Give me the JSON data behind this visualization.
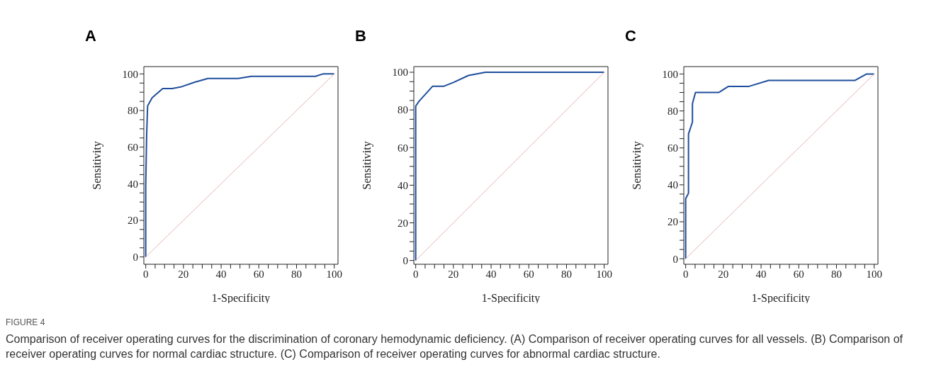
{
  "chart_data": [
    {
      "type": "line",
      "title": "A",
      "xlabel": "1-Specificity",
      "ylabel": "Sensitivity",
      "xlim": [
        -1,
        102
      ],
      "ylim": [
        -4,
        104
      ],
      "xticks": [
        0,
        {
          "value": 5,
          "label": null
        },
        {
          "value": 10,
          "label": null
        },
        {
          "value": 15,
          "label": null
        },
        20,
        {
          "value": 25,
          "label": null
        },
        {
          "value": 30,
          "label": null
        },
        {
          "value": 35,
          "label": null
        },
        40,
        {
          "value": 45,
          "label": null
        },
        {
          "value": 50,
          "label": null
        },
        {
          "value": 55,
          "label": null
        },
        60,
        {
          "value": 65,
          "label": null
        },
        {
          "value": 70,
          "label": null
        },
        {
          "value": 75,
          "label": null
        },
        80,
        {
          "value": 85,
          "label": null
        },
        {
          "value": 90,
          "label": null
        },
        {
          "value": 95,
          "label": null
        },
        100
      ],
      "yticks": [
        0,
        {
          "value": 5,
          "label": null
        },
        {
          "value": 10,
          "label": null
        },
        {
          "value": 15,
          "label": null
        },
        20,
        {
          "value": 25,
          "label": null
        },
        {
          "value": 30,
          "label": null
        },
        {
          "value": 35,
          "label": null
        },
        40,
        {
          "value": 45,
          "label": null
        },
        {
          "value": 50,
          "label": null
        },
        {
          "value": 55,
          "label": null
        },
        60,
        {
          "value": 65,
          "label": null
        },
        {
          "value": 70,
          "label": null
        },
        {
          "value": 75,
          "label": null
        },
        80,
        {
          "value": 85,
          "label": null
        },
        {
          "value": 90,
          "label": null
        },
        {
          "value": 95,
          "label": null
        },
        100
      ],
      "grid": false,
      "marker": "none",
      "series": [
        {
          "color": "#1f4e9c",
          "x": [
            0,
            0,
            0.5,
            1,
            3.4,
            9,
            14,
            19,
            26,
            33,
            49,
            56,
            90,
            94,
            100
          ],
          "values": [
            0,
            39,
            67,
            82.5,
            87,
            92,
            92,
            93,
            95.5,
            97.5,
            97.5,
            98.7,
            98.7,
            100,
            100
          ]
        },
        {
          "color": "#e3b5b5",
          "x": [
            0,
            100
          ],
          "values": [
            0,
            100
          ]
        }
      ]
    },
    {
      "type": "line",
      "title": "B",
      "xlabel": "1-Specificity",
      "ylabel": "Sensitivity",
      "xlim": [
        -1,
        102
      ],
      "ylim": [
        -2,
        103
      ],
      "xticks": [
        0,
        {
          "value": 5,
          "label": null
        },
        {
          "value": 10,
          "label": null
        },
        {
          "value": 15,
          "label": null
        },
        20,
        {
          "value": 25,
          "label": null
        },
        {
          "value": 30,
          "label": null
        },
        {
          "value": 35,
          "label": null
        },
        40,
        {
          "value": 45,
          "label": null
        },
        {
          "value": 50,
          "label": null
        },
        {
          "value": 55,
          "label": null
        },
        60,
        {
          "value": 65,
          "label": null
        },
        {
          "value": 70,
          "label": null
        },
        {
          "value": 75,
          "label": null
        },
        80,
        {
          "value": 85,
          "label": null
        },
        {
          "value": 90,
          "label": null
        },
        {
          "value": 95,
          "label": null
        },
        100
      ],
      "yticks": [
        0,
        {
          "value": 5,
          "label": null
        },
        {
          "value": 10,
          "label": null
        },
        {
          "value": 15,
          "label": null
        },
        20,
        {
          "value": 25,
          "label": null
        },
        {
          "value": 30,
          "label": null
        },
        {
          "value": 35,
          "label": null
        },
        40,
        {
          "value": 45,
          "label": null
        },
        {
          "value": 50,
          "label": null
        },
        {
          "value": 55,
          "label": null
        },
        60,
        {
          "value": 65,
          "label": null
        },
        {
          "value": 70,
          "label": null
        },
        {
          "value": 75,
          "label": null
        },
        80,
        {
          "value": 85,
          "label": null
        },
        {
          "value": 90,
          "label": null
        },
        {
          "value": 95,
          "label": null
        },
        100
      ],
      "grid": false,
      "marker": "none",
      "series": [
        {
          "color": "#1f4e9c",
          "x": [
            0,
            0,
            1.7,
            9,
            15,
            20,
            28,
            37,
            100
          ],
          "values": [
            0,
            82,
            84.5,
            92.6,
            92.6,
            94.6,
            98.3,
            100,
            100
          ]
        },
        {
          "color": "#e3b5b5",
          "x": [
            0,
            100
          ],
          "values": [
            0,
            100
          ]
        }
      ]
    },
    {
      "type": "line",
      "title": "C",
      "xlabel": "1-Specificity",
      "ylabel": "Sensitivity",
      "xlim": [
        -1,
        102
      ],
      "ylim": [
        -3,
        104
      ],
      "xticks": [
        0,
        {
          "value": 5,
          "label": null
        },
        {
          "value": 10,
          "label": null
        },
        {
          "value": 15,
          "label": null
        },
        20,
        {
          "value": 25,
          "label": null
        },
        {
          "value": 30,
          "label": null
        },
        {
          "value": 35,
          "label": null
        },
        40,
        {
          "value": 45,
          "label": null
        },
        {
          "value": 50,
          "label": null
        },
        {
          "value": 55,
          "label": null
        },
        60,
        {
          "value": 65,
          "label": null
        },
        {
          "value": 70,
          "label": null
        },
        {
          "value": 75,
          "label": null
        },
        80,
        {
          "value": 85,
          "label": null
        },
        {
          "value": 90,
          "label": null
        },
        {
          "value": 95,
          "label": null
        },
        100
      ],
      "yticks": [
        0,
        {
          "value": 5,
          "label": null
        },
        {
          "value": 10,
          "label": null
        },
        {
          "value": 15,
          "label": null
        },
        20,
        {
          "value": 25,
          "label": null
        },
        {
          "value": 30,
          "label": null
        },
        {
          "value": 35,
          "label": null
        },
        40,
        {
          "value": 45,
          "label": null
        },
        {
          "value": 50,
          "label": null
        },
        {
          "value": 55,
          "label": null
        },
        60,
        {
          "value": 65,
          "label": null
        },
        {
          "value": 70,
          "label": null
        },
        {
          "value": 75,
          "label": null
        },
        80,
        {
          "value": 85,
          "label": null
        },
        {
          "value": 90,
          "label": null
        },
        {
          "value": 95,
          "label": null
        },
        100
      ],
      "grid": false,
      "marker": "none",
      "annotations": [
        "FIGURE 4",
        "Comparison of receiver operating curves for the discrimination of coronary hemodynamic deficiency. (A) Comparison of receiver operating curves for all vessels. (B) Comparison of receiver operating curves for normal cardiac structure. (C) Comparison of receiver operating curves for abnormal cardiac structure."
      ],
      "series": [
        {
          "color": "#1f4e9c",
          "x": [
            0,
            0,
            1.5,
            1.5,
            3.6,
            3.6,
            5.2,
            17.6,
            22.7,
            33.6,
            44,
            89.7,
            96,
            100
          ],
          "values": [
            0,
            32.5,
            35.5,
            67.5,
            74,
            84,
            90,
            90,
            93.3,
            93.3,
            96.5,
            96.5,
            100,
            100
          ]
        },
        {
          "color": "#e3b5b5",
          "x": [
            0,
            100
          ],
          "values": [
            0,
            100
          ]
        }
      ]
    }
  ]
}
